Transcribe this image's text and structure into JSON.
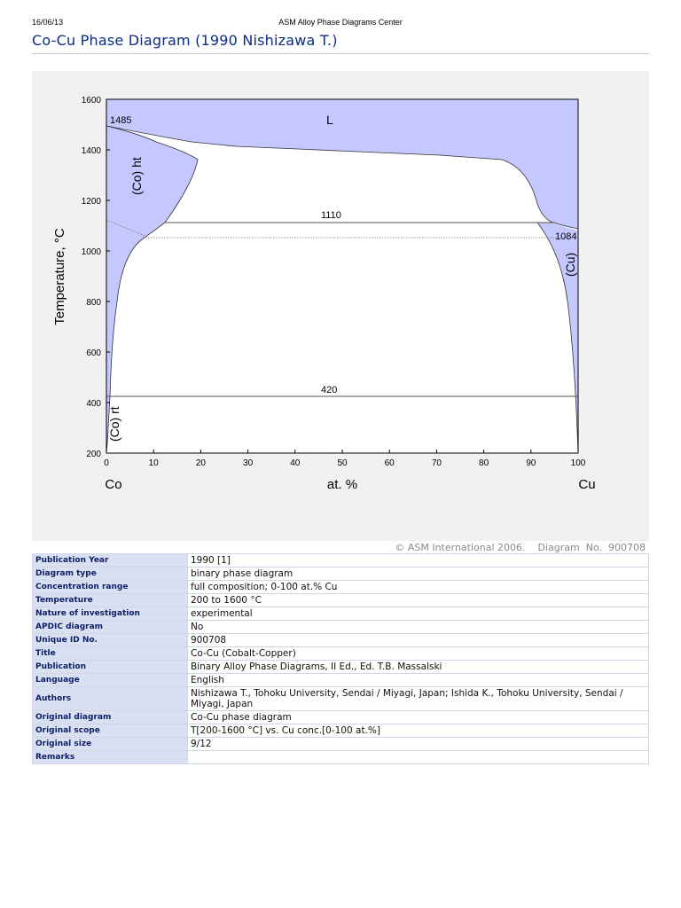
{
  "header": {
    "date": "16/06/13",
    "site": "ASM Alloy Phase Diagrams Center",
    "title": "Co-Cu Phase Diagram (1990 Nishizawa T.)"
  },
  "diagram": {
    "ylabel": "Temperature, °C",
    "xlabel": "at. %",
    "left_element": "Co",
    "right_element": "Cu",
    "x_ticks": [
      "0",
      "10",
      "20",
      "30",
      "40",
      "50",
      "60",
      "70",
      "80",
      "90",
      "100"
    ],
    "y_ticks": [
      "200",
      "400",
      "600",
      "800",
      "1000",
      "1200",
      "1400",
      "1600"
    ],
    "labels": {
      "co_melt": "1485",
      "liquid": "L",
      "co_ht": "(Co) ht",
      "peritectic": "1110",
      "cu_melt": "1084",
      "cu_solid": "(Cu)",
      "transition": "420",
      "co_rt": "(Co) rt"
    },
    "colors": {
      "phase_fill": "#c5c8ff",
      "background": "#f1f1f1"
    },
    "copyright": "© ASM International 2006.",
    "diagram_no": "Diagram  No.  900708"
  },
  "meta": {
    "rows": [
      {
        "key": "Publication Year",
        "value": "1990 [1]"
      },
      {
        "key": "Diagram type",
        "value": "binary phase diagram"
      },
      {
        "key": "Concentration range",
        "value": "full composition; 0-100 at.% Cu"
      },
      {
        "key": "Temperature",
        "value": "200 to 1600 °C"
      },
      {
        "key": "Nature of investigation",
        "value": "experimental"
      },
      {
        "key": "APDIC diagram",
        "value": "No"
      },
      {
        "key": "Unique ID No.",
        "value": "900708"
      },
      {
        "key": "Title",
        "value": "Co-Cu (Cobalt-Copper)"
      },
      {
        "key": "Publication",
        "value": "Binary Alloy Phase Diagrams, II Ed., Ed. T.B. Massalski"
      },
      {
        "key": "Language",
        "value": "English"
      },
      {
        "key": "Authors",
        "value": "Nishizawa T., Tohoku University, Sendai / Miyagi, Japan; Ishida K., Tohoku University, Sendai / Miyagi, Japan"
      },
      {
        "key": "Original diagram",
        "value": "Co-Cu phase diagram"
      },
      {
        "key": "Original scope",
        "value": "T[200-1600 °C] vs. Cu conc.[0-100 at.%]"
      },
      {
        "key": "Original size",
        "value": "9/12"
      },
      {
        "key": "Remarks",
        "value": ""
      }
    ]
  }
}
